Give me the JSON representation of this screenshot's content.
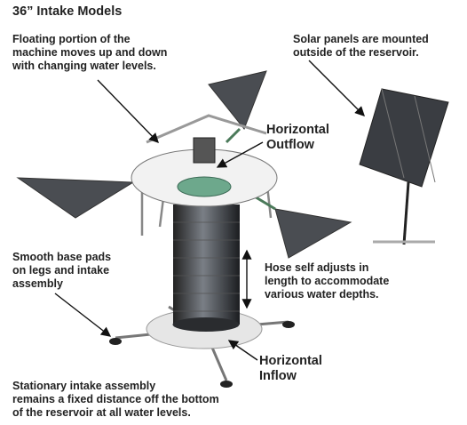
{
  "title": "36” Intake Models",
  "annotations": [
    {
      "lines": [
        "Floating portion of the",
        "machine moves up and down",
        "with changing water levels."
      ]
    },
    {
      "lines": [
        "Solar panels are mounted",
        "outside of the reservoir."
      ]
    },
    {
      "lines": [
        "Horizontal",
        "Outflow"
      ]
    },
    {
      "lines": [
        "Smooth base pads",
        "on legs and intake",
        "assembly"
      ]
    },
    {
      "lines": [
        "Hose self adjusts in",
        "length to accommodate",
        "various water depths."
      ]
    },
    {
      "lines": [
        "Horizontal",
        "Inflow"
      ]
    },
    {
      "lines": [
        "Stationary intake assembly",
        "remains a fixed distance off the bottom",
        "of the reservoir at all water levels."
      ]
    }
  ]
}
